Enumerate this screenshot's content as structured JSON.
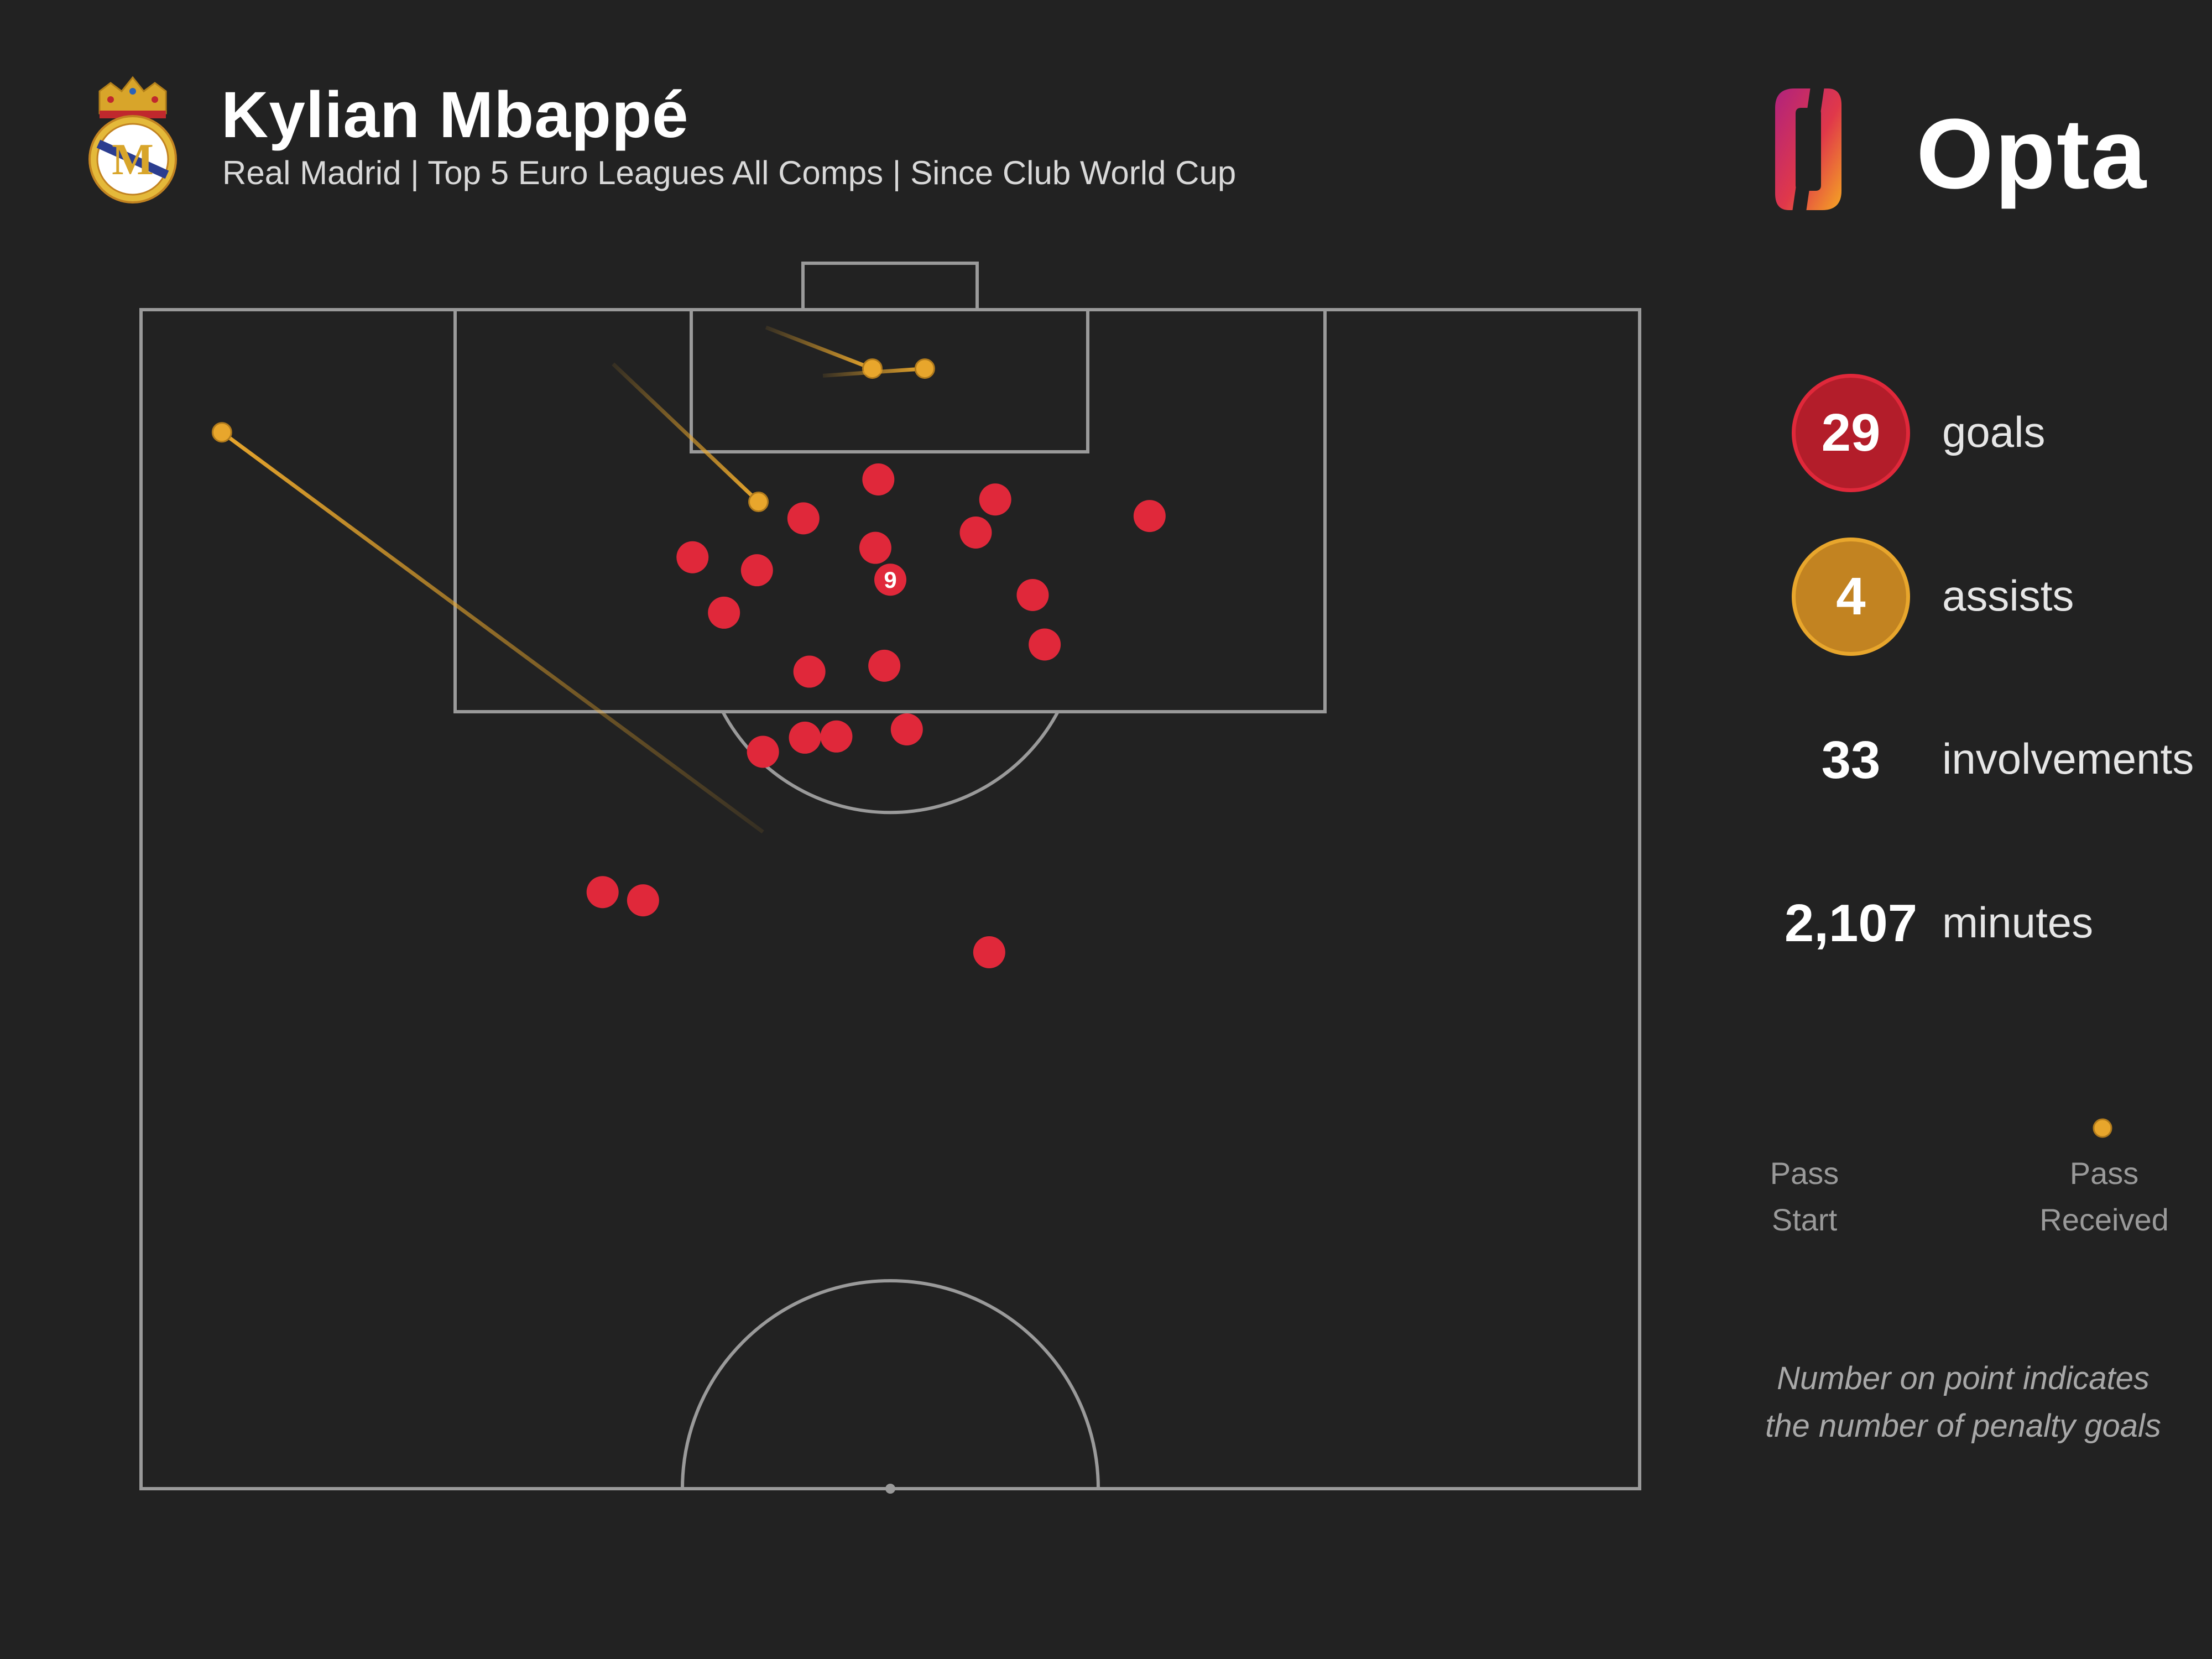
{
  "header": {
    "title": "Kylian Mbappé",
    "subtitle": "Real Madrid | Top 5 Euro Leagues All Comps | Since Club World Cup"
  },
  "brand": {
    "logo_text": "Opta",
    "crest_icon": "real-madrid-crest-icon"
  },
  "stats": [
    {
      "value": "29",
      "label": "goals",
      "color": "#b31d2a"
    },
    {
      "value": "4",
      "label": "assists",
      "color": "#c28321"
    },
    {
      "value": "33",
      "label": "involvements"
    },
    {
      "value": "2,107",
      "label": "minutes"
    }
  ],
  "legend": {
    "start_label": "Pass\nStart",
    "end_label": "Pass\nReceived"
  },
  "footnote": "Number on point indicates\nthe number of penalty goals",
  "chart_data": {
    "type": "scatter",
    "title": "Kylian Mbappé",
    "pitch": {
      "x_range": [
        0,
        100
      ],
      "y_range": [
        0,
        100
      ]
    },
    "colors": {
      "goal": "#e0283a",
      "assist": "#e8a62c",
      "line": "#9a9a9a",
      "background": "#222222"
    },
    "goals": [
      {
        "x": 49.2,
        "y": 14.4
      },
      {
        "x": 44.2,
        "y": 17.7
      },
      {
        "x": 57.0,
        "y": 16.1
      },
      {
        "x": 55.7,
        "y": 18.9
      },
      {
        "x": 67.3,
        "y": 17.5
      },
      {
        "x": 49.0,
        "y": 20.2
      },
      {
        "x": 36.8,
        "y": 21.0
      },
      {
        "x": 41.1,
        "y": 22.1
      },
      {
        "x": 59.5,
        "y": 24.2
      },
      {
        "x": 38.9,
        "y": 25.7
      },
      {
        "x": 60.3,
        "y": 28.4
      },
      {
        "x": 49.6,
        "y": 30.2
      },
      {
        "x": 44.6,
        "y": 30.7
      },
      {
        "x": 51.1,
        "y": 35.6
      },
      {
        "x": 46.4,
        "y": 36.2
      },
      {
        "x": 44.3,
        "y": 36.3
      },
      {
        "x": 41.5,
        "y": 37.5
      },
      {
        "x": 30.8,
        "y": 49.4
      },
      {
        "x": 33.5,
        "y": 50.1
      },
      {
        "x": 56.6,
        "y": 54.5
      }
    ],
    "penalty_goals": {
      "x": 50.0,
      "y": 22.9,
      "count": "9"
    },
    "assists": [
      {
        "start": [
          41.7,
          1.5
        ],
        "end": [
          48.8,
          5.0
        ]
      },
      {
        "start": [
          45.5,
          5.6
        ],
        "end": [
          52.3,
          5.0
        ]
      },
      {
        "start": [
          31.5,
          4.6
        ],
        "end": [
          41.2,
          16.3
        ]
      },
      {
        "start": [
          41.5,
          44.3
        ],
        "end": [
          5.4,
          10.4
        ]
      }
    ]
  }
}
